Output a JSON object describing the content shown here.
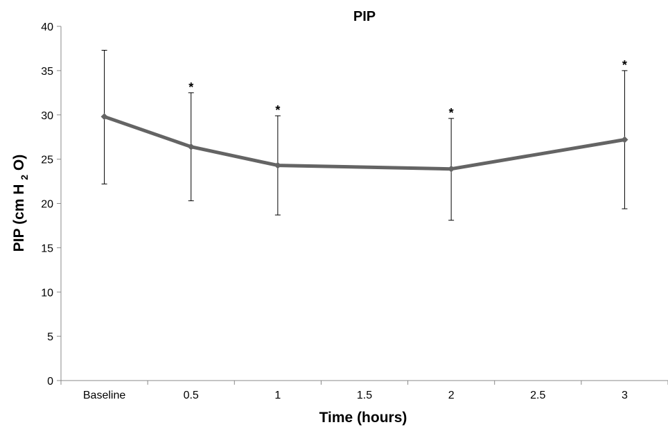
{
  "chart_data": {
    "type": "line",
    "title": "PIP",
    "xlabel": "Time (hours)",
    "ylabel": {
      "main": "PIP (cm H",
      "sub": "2",
      "tail": "O)"
    },
    "categories": [
      "Baseline",
      "0.5",
      "1",
      "1.5",
      "2",
      "2.5",
      "3"
    ],
    "yticks": [
      "0",
      "5",
      "10",
      "15",
      "20",
      "25",
      "30",
      "35",
      "40"
    ],
    "ylim": [
      0,
      40
    ],
    "grid": false,
    "series": [
      {
        "values": [
          29.8,
          26.4,
          24.3,
          null,
          23.9,
          null,
          27.2
        ],
        "error_low": [
          22.2,
          20.3,
          18.7,
          null,
          18.1,
          null,
          19.4
        ],
        "error_high": [
          37.3,
          32.5,
          29.9,
          null,
          29.6,
          null,
          35.0
        ],
        "color": "#646464"
      }
    ],
    "annotations": [
      {
        "category": "0.5",
        "text": "*"
      },
      {
        "category": "1",
        "text": "*"
      },
      {
        "category": "2",
        "text": "*"
      },
      {
        "category": "3",
        "text": "*"
      }
    ]
  }
}
